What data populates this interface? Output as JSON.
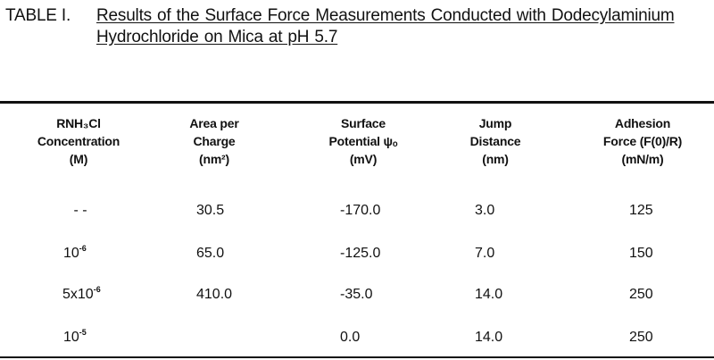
{
  "caption": {
    "label": "TABLE I.",
    "title": "Results of the Surface Force Measurements Conducted with Dodecylaminium Hydrochloride on Mica at pH 5.7"
  },
  "table": {
    "headers": [
      {
        "lines": [
          "RNH₃Cl",
          "Concentration",
          "(M)"
        ]
      },
      {
        "lines": [
          "Area per",
          "Charge",
          "(nm²)"
        ]
      },
      {
        "lines": [
          "Surface",
          "Potential ψₒ",
          "(mV)"
        ]
      },
      {
        "lines": [
          "Jump",
          "Distance",
          "(nm)"
        ]
      },
      {
        "lines": [
          "Adhesion",
          "Force (F(0)/R)",
          "(mN/m)"
        ]
      }
    ],
    "rows": [
      {
        "concentration": {
          "base": "- -",
          "exp": ""
        },
        "area": "30.5",
        "potential": "-170.0",
        "jump": "3.0",
        "adhesion": "125"
      },
      {
        "concentration": {
          "base": "10",
          "exp": "-6"
        },
        "area": "65.0",
        "potential": "-125.0",
        "jump": "7.0",
        "adhesion": "150"
      },
      {
        "concentration": {
          "base": "5x10",
          "exp": "-6"
        },
        "area": "410.0",
        "potential": "-35.0",
        "jump": "14.0",
        "adhesion": "250"
      },
      {
        "concentration": {
          "base": "10",
          "exp": "-5"
        },
        "area": "",
        "potential": "0.0",
        "jump": "14.0",
        "adhesion": "250"
      }
    ]
  }
}
